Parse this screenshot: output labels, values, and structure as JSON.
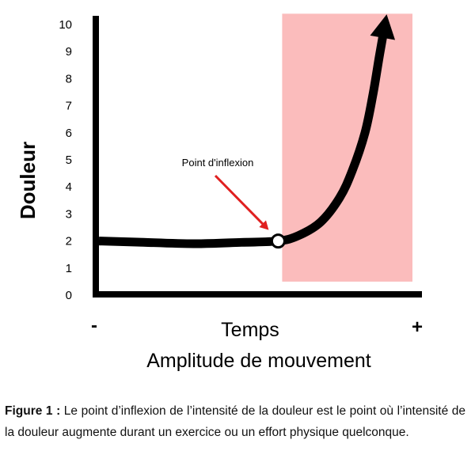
{
  "chart_data": {
    "type": "line",
    "ylabel": "Douleur",
    "xlabel": "Temps",
    "xlabel_secondary": "Amplitude de mouvement",
    "x_min_label": "-",
    "x_max_label": "+",
    "yticks": [
      "0",
      "1",
      "2",
      "3",
      "4",
      "5",
      "6",
      "7",
      "8",
      "9",
      "10"
    ],
    "ylim": [
      0,
      10
    ],
    "x_scale": "qualitative (time / range of motion)",
    "grid": false,
    "series": [
      {
        "values_xy": [
          [
            0,
            2.0
          ],
          [
            0.12,
            1.96
          ],
          [
            0.3,
            1.9
          ],
          [
            0.45,
            1.95
          ],
          [
            0.566,
            2.0
          ],
          [
            0.63,
            2.2
          ],
          [
            0.7,
            2.7
          ],
          [
            0.76,
            3.6
          ],
          [
            0.8,
            4.6
          ],
          [
            0.84,
            6.0
          ],
          [
            0.865,
            7.4
          ],
          [
            0.885,
            8.8
          ],
          [
            0.9,
            9.8
          ]
        ],
        "arrow_end": true
      }
    ],
    "inflection_point": {
      "x": 0.566,
      "y": 2.0
    },
    "annotation": "Point d'inflexion",
    "shaded_region": {
      "x_from": 0.566,
      "x_to": 1.0,
      "y_from": 0.5,
      "y_to": 10.4,
      "color": "#fbbcbc"
    },
    "colors": {
      "line": "#000000",
      "arrow_annotation": "#e02020",
      "shade": "#fbbcbc"
    }
  },
  "caption": {
    "label": "Figure 1 :",
    "text": "Le point d’inflexion de l’intensité de la douleur est le point où l’intensité de la douleur augmente durant un exercice ou un effort physique quelconque."
  }
}
